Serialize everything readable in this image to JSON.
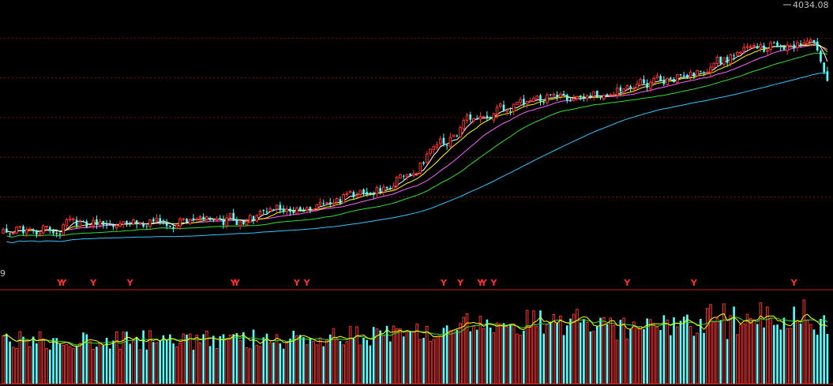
{
  "chart_data": [
    {
      "type": "candlestick",
      "panel": "price",
      "last_price_label": "4034.08",
      "corner_label": "9",
      "yrange": [
        2500,
        4100
      ],
      "gridlines": [
        3900,
        3650,
        3400,
        3150,
        2900
      ],
      "ma_colors": {
        "ma5": "#ffffff",
        "ma10": "#ffff00",
        "ma20": "#ff60ff",
        "ma30": "#30e030",
        "ma60": "#30c8ff"
      },
      "up_color": "#ff3030",
      "down_color": "#54ffff",
      "signal_marker": "Y",
      "signal_color": "#ff3030",
      "signal_indices": [
        17,
        18,
        27,
        38,
        69,
        70,
        88,
        91,
        132,
        137,
        143,
        144,
        147,
        187,
        207,
        237
      ]
    },
    {
      "type": "bar",
      "panel": "volume",
      "ma_colors": {
        "vma5": "#ffff00",
        "vma10": "#30e030"
      }
    }
  ]
}
